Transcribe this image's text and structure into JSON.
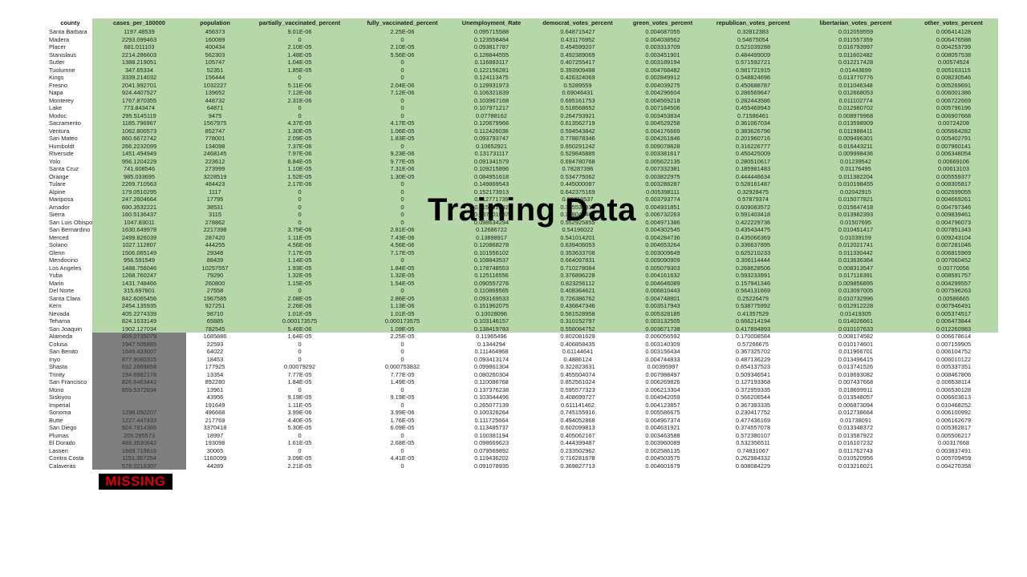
{
  "overlay": {
    "training_label": "Training Data",
    "missing_label": "MISSING"
  },
  "columns": [
    "county",
    "cases_per_100000",
    "population",
    "partially_vaccinated_percent",
    "fully_vaccinated_percent",
    "Unemployment_Rate",
    "democrat_votes_percent",
    "green_votes_percent",
    "republican_votes_percent",
    "libertarian_votes_percent",
    "other_votes_percent"
  ],
  "training_rows": [
    [
      "Santa Barbara",
      "1197.48539",
      "456373",
      "9.01E-06",
      "2.25E-06",
      "0.095715588",
      "0.648715427",
      "0.004687055",
      "0.32812383",
      "0.012059559",
      "0.006414128"
    ],
    [
      "Madera",
      "2293.099463",
      "160089",
      "0",
      "0",
      "0.123558484",
      "0.431176952",
      "0.004038562",
      "0.54675054",
      "0.011557359",
      "0.006476588"
    ],
    [
      "Placer",
      "681.011103",
      "400434",
      "2.10E-05",
      "2.10E-05",
      "0.093817787",
      "0.454599207",
      "0.003313709",
      "0.521039288",
      "0.016793997",
      "0.004253799"
    ],
    [
      "Stanislaus",
      "2214.286603",
      "562303",
      "1.48E-05",
      "5.56E-06",
      "0.128844555",
      "0.492389069",
      "0.003451901",
      "0.484499009",
      "0.011602482",
      "0.008057538"
    ],
    [
      "Sutter",
      "1388.219051",
      "105747",
      "1.04E-05",
      "0",
      "0.116883117",
      "0.407255417",
      "0.003189194",
      "0.571592721",
      "0.012217428",
      "0.00574524"
    ],
    [
      "Tuolumne",
      "347.65334",
      "52351",
      "1.85E-05",
      "0",
      "0.122156281",
      "0.393909498",
      "0.004768482",
      "0.581721915",
      "0.01443699",
      "0.005163115"
    ],
    [
      "Kings",
      "3339.214032",
      "156444",
      "0",
      "0",
      "0.124113475",
      "0.426324069",
      "0.002849912",
      "0.548824696",
      "0.013770776",
      "0.008230546"
    ],
    [
      "Fresno",
      "2041.992701",
      "1032227",
      "5.11E-06",
      "2.04E-06",
      "0.129931973",
      "0.5289559",
      "0.004039275",
      "0.450688787",
      "0.011046348",
      "0.005269691"
    ],
    [
      "Napa",
      "924.4407527",
      "139652",
      "7.12E-06",
      "7.12E-06",
      "0.106321839",
      "0.69046431",
      "0.004296604",
      "0.286569647",
      "0.012668053",
      "0.006001386"
    ],
    [
      "Monterey",
      "1767.870355",
      "448732",
      "2.31E-06",
      "0",
      "0.103967168",
      "0.695161753",
      "0.004569218",
      "0.282443586",
      "0.011102774",
      "0.006722669"
    ],
    [
      "Lake",
      "773.843474",
      "64871",
      "0",
      "0",
      "0.107971217",
      "0.518568652",
      "0.007184506",
      "0.455469943",
      "0.012980702",
      "0.005796196"
    ],
    [
      "Modoc",
      "295.5145119",
      "9475",
      "0",
      "0",
      "0.07788162",
      "0.264793921",
      "0.003453834",
      "0.71586461",
      "0.008979968",
      "0.006907668"
    ],
    [
      "Sacramento",
      "1185.796967",
      "1567975",
      "4.37E-05",
      "4.17E-05",
      "0.120679966",
      "0.613562719",
      "0.004529258",
      "0.361067034",
      "0.013598909",
      "0.00724208"
    ],
    [
      "Ventura",
      "1062.800573",
      "852747",
      "1.30E-05",
      "1.06E-05",
      "0.112426036",
      "0.594543842",
      "0.004176669",
      "0.383626796",
      "0.011988411",
      "0.005664282"
    ],
    [
      "San Mateo",
      "860.6672742",
      "778001",
      "2.09E-05",
      "1.83E-05",
      "0.093793747",
      "0.778878346",
      "0.004261846",
      "0.201960716",
      "0.009496301",
      "0.005402791"
    ],
    [
      "Humboldt",
      "266.2232099",
      "134098",
      "7.37E-06",
      "0",
      "0.10652921",
      "0.650291242",
      "0.009078628",
      "0.316226777",
      "0.016443211",
      "0.007960141"
    ],
    [
      "Riverside",
      "1451.494949",
      "2468145",
      "7.97E-06",
      "9.23E-06",
      "0.131731117",
      "0.529846885",
      "0.003381617",
      "0.450425009",
      "0.009998436",
      "0.006348054"
    ],
    [
      "Yolo",
      "956.1204229",
      "223612",
      "8.84E-05",
      "9.77E-05",
      "0.091341579",
      "0.694780768",
      "0.005622135",
      "0.280510617",
      "0.01239542",
      "0.00669106"
    ],
    [
      "Santa Cruz",
      "741.608546",
      "273999",
      "1.10E-05",
      "7.31E-06",
      "0.109215896",
      "0.78287396",
      "0.007332381",
      "0.185981483",
      "0.01176495",
      "0.00613103"
    ],
    [
      "Orange",
      "985.033695",
      "3228519",
      "1.52E-05",
      "1.30E-05",
      "0.084951618",
      "0.534775062",
      "0.003822975",
      "0.444446634",
      "0.011382204",
      "0.005559377"
    ],
    [
      "Tulare",
      "2269.710563",
      "484423",
      "2.17E-06",
      "0",
      "0.149869543",
      "0.445000087",
      "0.003288287",
      "0.528161487",
      "0.010198455",
      "0.008305817"
    ],
    [
      "Alpine",
      "179.0510295",
      "1117",
      "0",
      "0",
      "0.152173913",
      "0.642375169",
      "0.005398111",
      "0.32928475",
      "0.02042915",
      "0.002699055"
    ],
    [
      "Mariposa",
      "247.2604664",
      "17795",
      "0",
      "0",
      "0.112771739",
      "0.39766537",
      "0.003793774",
      "0.57879374",
      "0.015077821",
      "0.004669261"
    ],
    [
      "Amador",
      "690.3532221",
      "38531",
      "0",
      "0",
      "0.115891742",
      "0.365539813",
      "0.004931851",
      "0.609083572",
      "0.015647418",
      "0.004797346"
    ],
    [
      "Sierra",
      "160.5136437",
      "3115",
      "0",
      "0",
      "0.087301587",
      "0.378042465",
      "0.006732263",
      "0.591403418",
      "0.013982393",
      "0.009839461"
    ],
    [
      "San Luis Obispo",
      "1047.83011",
      "278862",
      "0",
      "0",
      "0.098634294",
      "0.552925855",
      "0.004971386",
      "0.422229736",
      "0.01507695",
      "0.004796073"
    ],
    [
      "San Bernardino",
      "1630.649978",
      "2217398",
      "3.75E-06",
      "2.81E-06",
      "0.12686722",
      "0.54196022",
      "0.004302545",
      "0.435434475",
      "0.010451417",
      "0.007851343"
    ],
    [
      "Merced",
      "2499.826039",
      "287420",
      "1.11E-05",
      "7.43E-06",
      "0.13898917",
      "0.541014201",
      "0.004284736",
      "0.435066369",
      "0.01039159",
      "0.009243104"
    ],
    [
      "Solano",
      "1027.112807",
      "444255",
      "4.56E-06",
      "4.56E-06",
      "0.120868278",
      "0.639406053",
      "0.004653264",
      "0.336637895",
      "0.012021741",
      "0.007281046"
    ],
    [
      "Glenn",
      "1506.065149",
      "29348",
      "7.17E-05",
      "7.17E-05",
      "0.101556102",
      "0.353633708",
      "0.003009649",
      "0.625210233",
      "0.011330442",
      "0.006815969"
    ],
    [
      "Mendocino",
      "956.591549",
      "88439",
      "1.14E-05",
      "0",
      "0.108843537",
      "0.664097831",
      "0.009090909",
      "0.306114444",
      "0.013636364",
      "0.007060452"
    ],
    [
      "Los Angeles",
      "1488.756046",
      "10257557",
      "1.93E-05",
      "1.84E-05",
      "0.178748553",
      "0.710278084",
      "0.005079303",
      "0.268628506",
      "0.008313547",
      "0.00770056"
    ],
    [
      "Yuba",
      "1268.760247",
      "79290",
      "1.32E-05",
      "1.32E-05",
      "0.125116556",
      "0.376896228",
      "0.004161632",
      "0.593233991",
      "0.017116391",
      "0.008591757"
    ],
    [
      "Marin",
      "1431.748466",
      "260800",
      "1.15E-05",
      "1.54E-05",
      "0.090557276",
      "0.823256112",
      "0.004646089",
      "0.157941346",
      "0.009856895",
      "0.004299557"
    ],
    [
      "Del Norte",
      "315.697801",
      "27558",
      "0",
      "0",
      "0.110869565",
      "0.408364621",
      "0.006810443",
      "0.564131669",
      "0.013097005",
      "0.007596263"
    ],
    [
      "Santa Clara",
      "842.6065456",
      "1967585",
      "2.08E-05",
      "2.86E-05",
      "0.093169533",
      "0.726386762",
      "0.004748801",
      "0.25226479",
      "0.010732996",
      "0.00586665"
    ],
    [
      "Kern",
      "2454.135935",
      "927251",
      "2.26E-06",
      "1.13E-06",
      "0.151962075",
      "0.436847346",
      "0.003517943",
      "0.538775992",
      "0.012912228",
      "0.007946491"
    ],
    [
      "Nevada",
      "405.2274339",
      "98710",
      "1.01E-05",
      "1.01E-05",
      "0.10028096",
      "0.561528958",
      "0.005328185",
      "0.41357529",
      "0.01419305",
      "0.005374517"
    ],
    [
      "Tehama",
      "824.1633149",
      "65885",
      "0.000173575",
      "0.000173575",
      "0.103146157",
      "0.310152797",
      "0.003132505",
      "0.666214194",
      "0.014026661",
      "0.006473844"
    ],
    [
      "San Joaquin",
      "1902.127034",
      "782545",
      "5.46E-06",
      "1.09E-05",
      "0.138419783",
      "0.556064752",
      "0.003671738",
      "0.417894893",
      "0.010107633",
      "0.012260983"
    ]
  ],
  "test_rows": [
    [
      "Alameda",
      "859.0735079",
      "1685886",
      "1.64E-05",
      "2.25E-05",
      "0.11965496",
      "0.802081629",
      "0.006056592",
      "0.170008584",
      "0.008174582",
      "0.006678614"
    ],
    [
      "Colusa",
      "1947.505865",
      "22593",
      "0",
      "0",
      "0.1344294",
      "0.406858435",
      "0.003140309",
      "0.57266675",
      "0.010174601",
      "0.007159905"
    ],
    [
      "San Benito",
      "1649.433007",
      "64022",
      "0",
      "0",
      "0.111464968",
      "0.61144641",
      "0.003156434",
      "0.367325702",
      "0.011966701",
      "0.006104752"
    ],
    [
      "Inyo",
      "877.9060315",
      "18453",
      "0",
      "0",
      "0.093413174",
      "0.4886124",
      "0.004744833",
      "0.487136229",
      "0.013496415",
      "0.006010122"
    ],
    [
      "Shasta",
      "632.2888858",
      "177925",
      "0.00079292",
      "0.000753832",
      "0.099861304",
      "0.322823631",
      "0.00395997",
      "0.654137523",
      "0.013741526",
      "0.005337351"
    ],
    [
      "Trinity",
      "194.6982178",
      "13354",
      "7.77E-05",
      "7.77E-05",
      "0.080260304",
      "0.455504074",
      "0.007988497",
      "0.509346541",
      "0.018693082",
      "0.008467806"
    ],
    [
      "San Francisco",
      "826.6463442",
      "892280",
      "1.84E-05",
      "1.49E-05",
      "0.110086768",
      "0.852561024",
      "0.006269826",
      "0.127193368",
      "0.007437668",
      "0.006538114"
    ],
    [
      "Mono",
      "859.5372834",
      "13961",
      "0",
      "0",
      "0.137376238",
      "0.595577323",
      "0.006213304",
      "0.372959335",
      "0.018699911",
      "0.006530128"
    ],
    [
      "Siskiyou",
      "",
      "43956",
      "9.19E-05",
      "9.19E-05",
      "0.103044496",
      "0.408699727",
      "0.004942059",
      "0.566206544",
      "0.013548057",
      "0.006603613"
    ],
    [
      "Imperial",
      "",
      "191649",
      "1.11E-05",
      "0",
      "0.265077139",
      "0.611141462",
      "0.004123857",
      "0.367393335",
      "0.006873094",
      "0.010468252"
    ],
    [
      "Sonoma",
      "1298.050207",
      "496668",
      "3.99E-06",
      "3.99E-06",
      "0.100326264",
      "0.745155916",
      "0.005586675",
      "0.230417752",
      "0.012738664",
      "0.006100992"
    ],
    [
      "Butte",
      "1227.447433",
      "217769",
      "4.40E-05",
      "1.76E-05",
      "0.111725664",
      "0.494052868",
      "0.004967374",
      "0.477436169",
      "0.01738091",
      "0.006162679"
    ],
    [
      "San Diego",
      "924.7814366",
      "3370418",
      "5.30E-05",
      "6.09E-05",
      "0.113485737",
      "0.602099813",
      "0.004631921",
      "0.374557078",
      "0.013348372",
      "0.005362817"
    ],
    [
      "Plumas",
      "205.295573",
      "18997",
      "0",
      "0",
      "0.100381194",
      "0.405062167",
      "0.003463588",
      "0.572380107",
      "0.013587922",
      "0.005506217"
    ],
    [
      "El Dorado",
      "488.3530642",
      "193098",
      "1.61E-05",
      "2.68E-05",
      "0.098669623",
      "0.444399487",
      "0.003960089",
      "0.532356511",
      "0.016107232",
      "0.00317668"
    ],
    [
      "Lassen",
      "1669.715616",
      "30065",
      "0",
      "0",
      "0.079569892",
      "0.233502962",
      "0.002586135",
      "0.74831067",
      "0.011762743",
      "0.003837491"
    ],
    [
      "Contra Costa",
      "1151.367254",
      "1160099",
      "3.09E-05",
      "4.41E-05",
      "0.119436202",
      "0.716281678",
      "0.004503575",
      "0.262984332",
      "0.010520956",
      "0.005709459"
    ],
    [
      "Calaveras",
      "578.0216307",
      "44289",
      "2.21E-05",
      "0",
      "0.091078935",
      "0.369827713",
      "0.004601679",
      "0.608084229",
      "0.013216021",
      "0.004270358"
    ]
  ]
}
